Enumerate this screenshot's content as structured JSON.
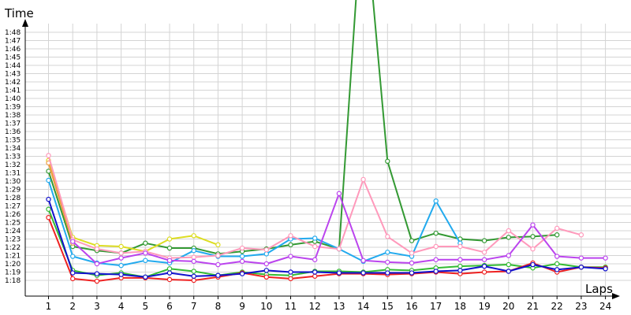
{
  "chart_data": {
    "type": "line",
    "xlabel": "Laps",
    "ylabel": "Time",
    "x": [
      1,
      2,
      3,
      4,
      5,
      6,
      7,
      8,
      9,
      10,
      11,
      12,
      13,
      14,
      15,
      16,
      17,
      18,
      19,
      20,
      21,
      22,
      23,
      24
    ],
    "xlim": [
      0,
      24.5
    ],
    "ylim": [
      76,
      108
    ],
    "y_ticks": [
      78,
      79,
      80,
      81,
      82,
      83,
      84,
      85,
      86,
      87,
      88,
      89,
      90,
      91,
      92,
      93,
      94,
      95,
      96,
      97,
      98,
      99,
      100,
      101,
      102,
      103,
      104,
      105,
      106,
      107,
      108
    ],
    "y_tick_labels": [
      "1:18",
      "1:19",
      "1:20",
      "1:21",
      "1:22",
      "1:23",
      "1:24",
      "1:25",
      "1:26",
      "1:27",
      "1:28",
      "1:29",
      "1:30",
      "1:31",
      "1:32",
      "1:33",
      "1:34",
      "1:35",
      "1:36",
      "1:37",
      "1:38",
      "1:39",
      "1:40",
      "1:41",
      "1:42",
      "1:43",
      "1:44",
      "1:45",
      "1:46",
      "1:47",
      "1:48"
    ],
    "grid": true,
    "legend": "none",
    "series": [
      {
        "color": "#33bb33",
        "values": [
          86.6,
          79.2,
          78.6,
          78.9,
          78.4,
          79.4,
          79.1,
          78.6,
          79.0,
          78.7,
          78.6,
          79.1,
          79.1,
          79.0,
          79.3,
          79.2,
          79.5,
          79.7,
          79.8,
          79.9,
          79.5,
          80.0,
          79.6,
          79.6
        ]
      },
      {
        "color": "#339933",
        "values": [
          91.2,
          82.1,
          81.6,
          81.3,
          82.5,
          81.9,
          81.9,
          81.2,
          81.5,
          81.8,
          82.3,
          82.7,
          81.8,
          125,
          92.4,
          82.8,
          83.7,
          83.0,
          82.8,
          83.2,
          83.3,
          83.5,
          null,
          null
        ]
      },
      {
        "color": "#dddd22",
        "values": [
          92.5,
          83.2,
          82.2,
          82.1,
          81.5,
          83.0,
          83.4,
          82.3,
          null,
          null,
          null,
          null,
          null,
          null,
          null,
          null,
          null,
          null,
          null,
          null,
          null,
          null,
          null,
          null
        ]
      },
      {
        "color": "#ee9944",
        "values": [
          92.2,
          82.5,
          null,
          null,
          null,
          null,
          null,
          null,
          null,
          null,
          null,
          null,
          null,
          null,
          null,
          null,
          null,
          null,
          null,
          null,
          null,
          null,
          null,
          null
        ]
      },
      {
        "color": "#22aaee",
        "values": [
          90.1,
          80.9,
          80.1,
          79.8,
          80.4,
          80.1,
          81.6,
          80.9,
          80.9,
          81.2,
          83.0,
          83.1,
          81.8,
          80.3,
          81.4,
          80.9,
          87.6,
          82.5,
          null,
          null,
          null,
          null,
          null,
          null
        ]
      },
      {
        "color": "#ff99bb",
        "values": [
          93.1,
          82.9,
          81.8,
          81.3,
          81.5,
          80.7,
          80.8,
          81.0,
          81.9,
          81.7,
          83.4,
          82.1,
          81.8,
          90.2,
          83.3,
          81.3,
          82.1,
          82.1,
          81.4,
          84.0,
          81.8,
          84.3,
          83.5,
          null
        ]
      },
      {
        "color": "#bb44ee",
        "values": [
          null,
          82.7,
          80.0,
          80.7,
          81.3,
          80.4,
          80.3,
          79.9,
          80.3,
          80.0,
          80.9,
          80.5,
          88.5,
          80.4,
          80.2,
          80.1,
          80.5,
          80.5,
          80.5,
          81.0,
          84.7,
          80.9,
          80.7,
          80.7
        ]
      },
      {
        "color": "#ee2222",
        "values": [
          85.6,
          78.2,
          77.9,
          78.3,
          78.3,
          78.1,
          78.0,
          78.4,
          78.9,
          78.4,
          78.2,
          78.5,
          78.8,
          78.8,
          78.7,
          78.8,
          79.0,
          78.8,
          79.0,
          79.1,
          80.1,
          79.0,
          79.6,
          79.5
        ]
      },
      {
        "color": "#1111cc",
        "values": [
          87.8,
          78.9,
          78.8,
          78.7,
          78.4,
          78.9,
          78.5,
          78.6,
          78.8,
          79.2,
          79.0,
          79.0,
          78.9,
          78.9,
          78.9,
          78.9,
          79.1,
          79.2,
          79.7,
          79.1,
          79.9,
          79.3,
          79.6,
          79.4
        ]
      }
    ]
  }
}
